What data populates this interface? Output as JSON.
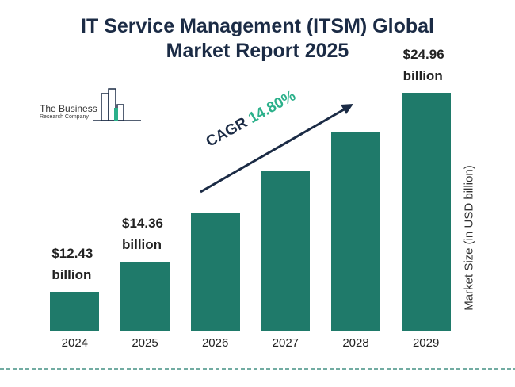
{
  "chart_data": {
    "type": "bar",
    "title": "IT Service Management (ITSM) Global Market Report 2025",
    "logo": {
      "line1": "The Business",
      "line2": "Research Company"
    },
    "y_label": "Market Size (in USD billion)",
    "annotation": {
      "label": "CAGR",
      "value": "14.80%"
    },
    "categories": [
      "2024",
      "2025",
      "2026",
      "2027",
      "2028",
      "2029"
    ],
    "values": [
      12.43,
      14.36,
      17.4,
      20.0,
      22.5,
      24.96
    ],
    "value_labels": [
      "$12.43 billion",
      "$14.36 billion",
      null,
      null,
      null,
      "$24.96 billion"
    ],
    "color": "#1f7a6a",
    "ylim": [
      10,
      25
    ]
  }
}
